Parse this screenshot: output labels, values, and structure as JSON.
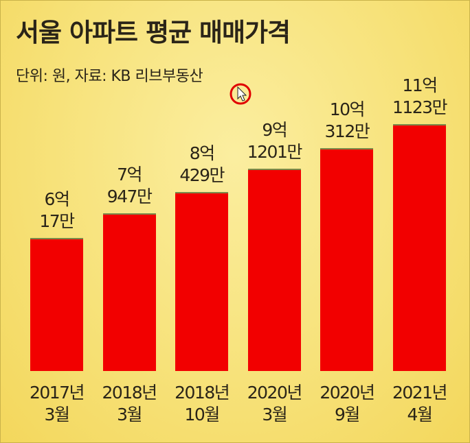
{
  "chart_data": {
    "type": "bar",
    "title": "서울 아파트 평균 매매가격",
    "subtitle": "단위: 원, 자료: KB 리브부동산",
    "categories": [
      "2017년\n3월",
      "2018년\n3월",
      "2018년\n10월",
      "2020년\n3월",
      "2020년\n9월",
      "2021년\n4월"
    ],
    "values": [
      600170000,
      709470000,
      804290000,
      912010000,
      1003120000,
      1111230000
    ],
    "value_labels": [
      "6억\n17만",
      "7억\n947만",
      "8억\n429만",
      "9억\n1201만",
      "10억\n312만",
      "11억\n1123만"
    ],
    "color": "#f20000"
  }
}
